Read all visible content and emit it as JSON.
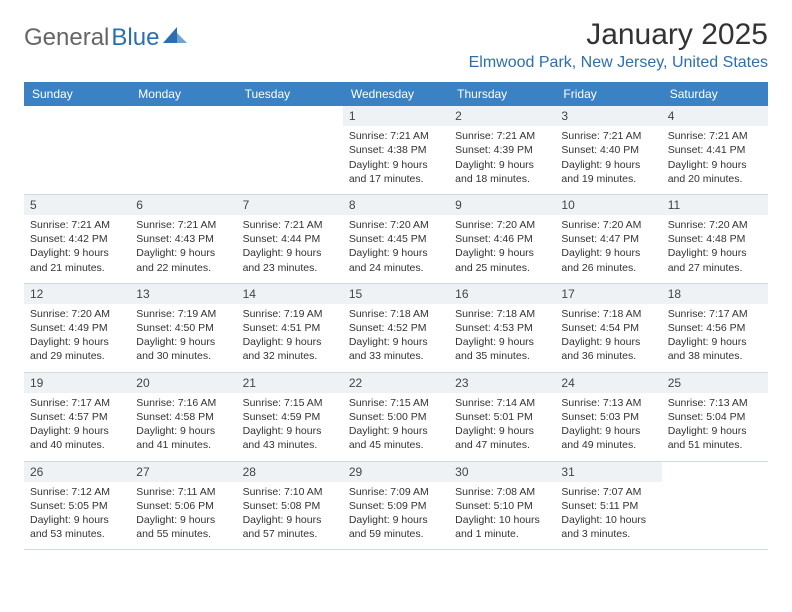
{
  "brand": {
    "part1": "General",
    "part2": "Blue"
  },
  "title": "January 2025",
  "location": "Elmwood Park, New Jersey, United States",
  "colors": {
    "header_bg": "#3b82c4",
    "header_text": "#ffffff",
    "daynum_bg": "#eef2f5",
    "border": "#d0d8e0",
    "location_color": "#2c6fb0",
    "body_text": "#333333"
  },
  "day_names": [
    "Sunday",
    "Monday",
    "Tuesday",
    "Wednesday",
    "Thursday",
    "Friday",
    "Saturday"
  ],
  "weeks": [
    [
      null,
      null,
      null,
      {
        "d": "1",
        "sr": "7:21 AM",
        "ss": "4:38 PM",
        "dl": "9 hours and 17 minutes."
      },
      {
        "d": "2",
        "sr": "7:21 AM",
        "ss": "4:39 PM",
        "dl": "9 hours and 18 minutes."
      },
      {
        "d": "3",
        "sr": "7:21 AM",
        "ss": "4:40 PM",
        "dl": "9 hours and 19 minutes."
      },
      {
        "d": "4",
        "sr": "7:21 AM",
        "ss": "4:41 PM",
        "dl": "9 hours and 20 minutes."
      }
    ],
    [
      {
        "d": "5",
        "sr": "7:21 AM",
        "ss": "4:42 PM",
        "dl": "9 hours and 21 minutes."
      },
      {
        "d": "6",
        "sr": "7:21 AM",
        "ss": "4:43 PM",
        "dl": "9 hours and 22 minutes."
      },
      {
        "d": "7",
        "sr": "7:21 AM",
        "ss": "4:44 PM",
        "dl": "9 hours and 23 minutes."
      },
      {
        "d": "8",
        "sr": "7:20 AM",
        "ss": "4:45 PM",
        "dl": "9 hours and 24 minutes."
      },
      {
        "d": "9",
        "sr": "7:20 AM",
        "ss": "4:46 PM",
        "dl": "9 hours and 25 minutes."
      },
      {
        "d": "10",
        "sr": "7:20 AM",
        "ss": "4:47 PM",
        "dl": "9 hours and 26 minutes."
      },
      {
        "d": "11",
        "sr": "7:20 AM",
        "ss": "4:48 PM",
        "dl": "9 hours and 27 minutes."
      }
    ],
    [
      {
        "d": "12",
        "sr": "7:20 AM",
        "ss": "4:49 PM",
        "dl": "9 hours and 29 minutes."
      },
      {
        "d": "13",
        "sr": "7:19 AM",
        "ss": "4:50 PM",
        "dl": "9 hours and 30 minutes."
      },
      {
        "d": "14",
        "sr": "7:19 AM",
        "ss": "4:51 PM",
        "dl": "9 hours and 32 minutes."
      },
      {
        "d": "15",
        "sr": "7:18 AM",
        "ss": "4:52 PM",
        "dl": "9 hours and 33 minutes."
      },
      {
        "d": "16",
        "sr": "7:18 AM",
        "ss": "4:53 PM",
        "dl": "9 hours and 35 minutes."
      },
      {
        "d": "17",
        "sr": "7:18 AM",
        "ss": "4:54 PM",
        "dl": "9 hours and 36 minutes."
      },
      {
        "d": "18",
        "sr": "7:17 AM",
        "ss": "4:56 PM",
        "dl": "9 hours and 38 minutes."
      }
    ],
    [
      {
        "d": "19",
        "sr": "7:17 AM",
        "ss": "4:57 PM",
        "dl": "9 hours and 40 minutes."
      },
      {
        "d": "20",
        "sr": "7:16 AM",
        "ss": "4:58 PM",
        "dl": "9 hours and 41 minutes."
      },
      {
        "d": "21",
        "sr": "7:15 AM",
        "ss": "4:59 PM",
        "dl": "9 hours and 43 minutes."
      },
      {
        "d": "22",
        "sr": "7:15 AM",
        "ss": "5:00 PM",
        "dl": "9 hours and 45 minutes."
      },
      {
        "d": "23",
        "sr": "7:14 AM",
        "ss": "5:01 PM",
        "dl": "9 hours and 47 minutes."
      },
      {
        "d": "24",
        "sr": "7:13 AM",
        "ss": "5:03 PM",
        "dl": "9 hours and 49 minutes."
      },
      {
        "d": "25",
        "sr": "7:13 AM",
        "ss": "5:04 PM",
        "dl": "9 hours and 51 minutes."
      }
    ],
    [
      {
        "d": "26",
        "sr": "7:12 AM",
        "ss": "5:05 PM",
        "dl": "9 hours and 53 minutes."
      },
      {
        "d": "27",
        "sr": "7:11 AM",
        "ss": "5:06 PM",
        "dl": "9 hours and 55 minutes."
      },
      {
        "d": "28",
        "sr": "7:10 AM",
        "ss": "5:08 PM",
        "dl": "9 hours and 57 minutes."
      },
      {
        "d": "29",
        "sr": "7:09 AM",
        "ss": "5:09 PM",
        "dl": "9 hours and 59 minutes."
      },
      {
        "d": "30",
        "sr": "7:08 AM",
        "ss": "5:10 PM",
        "dl": "10 hours and 1 minute."
      },
      {
        "d": "31",
        "sr": "7:07 AM",
        "ss": "5:11 PM",
        "dl": "10 hours and 3 minutes."
      },
      null
    ]
  ],
  "labels": {
    "sunrise": "Sunrise:",
    "sunset": "Sunset:",
    "daylight": "Daylight:"
  }
}
